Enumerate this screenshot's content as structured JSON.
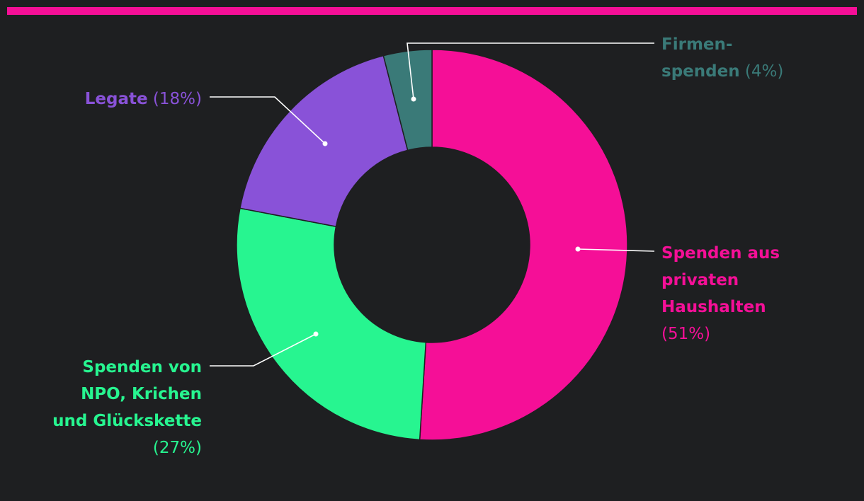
{
  "colors": {
    "background": "#1e1f21",
    "accent_bar": "#f50f97",
    "leader_line": "#ffffff",
    "slice_border": "#1e1f21"
  },
  "chart_data": {
    "type": "pie",
    "variant": "donut",
    "title": "",
    "slices": [
      {
        "label_lines": [
          "Spenden aus",
          "privaten",
          "Haushalten"
        ],
        "percent_label": "(51%)",
        "value": 51,
        "color": "#f50f97"
      },
      {
        "label_lines": [
          "Spenden von",
          "NPO, Krichen",
          "und Glückskette"
        ],
        "percent_label": "(27%)",
        "value": 27,
        "color": "#27f590"
      },
      {
        "label_lines": [
          "Legate"
        ],
        "percent_label": "(18%)",
        "value": 18,
        "color": "#8952d8"
      },
      {
        "label_lines": [
          "Firmen-",
          "spenden"
        ],
        "percent_label": "(4%)",
        "value": 4,
        "color": "#3a7a78"
      }
    ]
  }
}
